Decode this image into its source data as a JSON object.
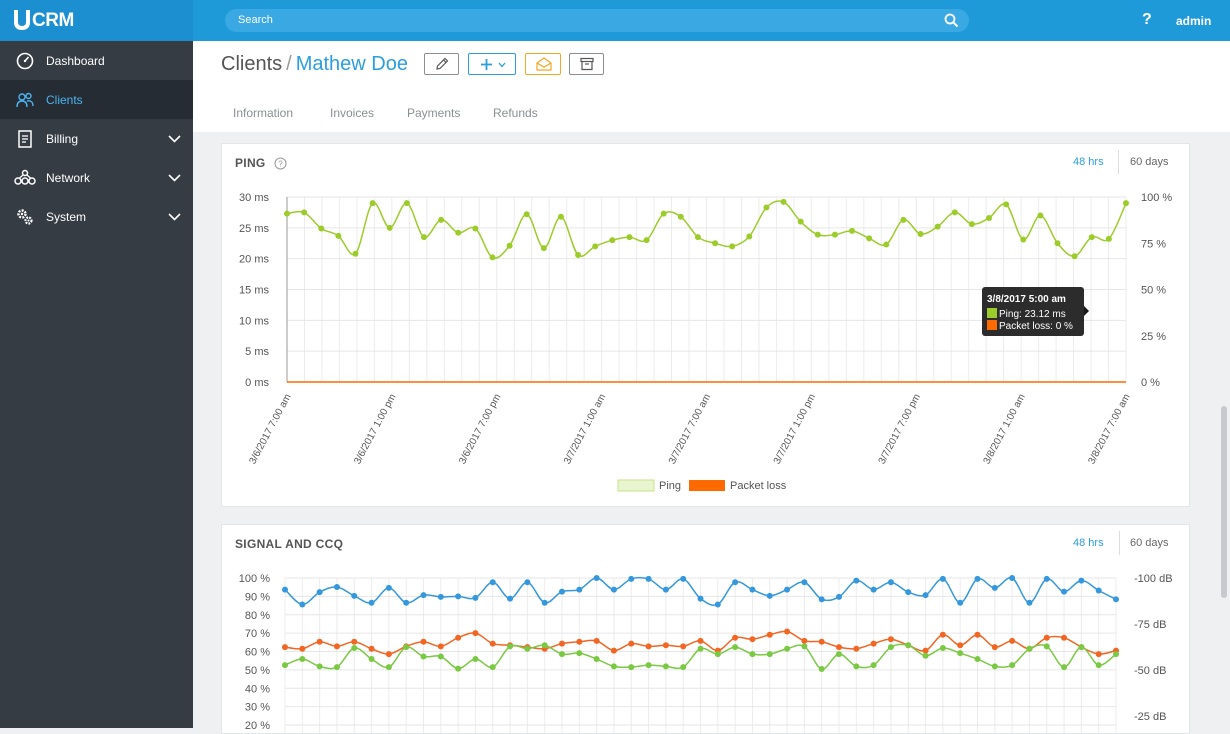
{
  "app": {
    "logo_text": "CRM",
    "search_placeholder": "Search",
    "help_label": "?",
    "user": "admin"
  },
  "sidebar": {
    "items": [
      {
        "label": "Dashboard",
        "icon": "dashboard-icon",
        "has_submenu": false,
        "active": false
      },
      {
        "label": "Clients",
        "icon": "clients-icon",
        "has_submenu": false,
        "active": true
      },
      {
        "label": "Billing",
        "icon": "billing-icon",
        "has_submenu": true,
        "active": false
      },
      {
        "label": "Network",
        "icon": "network-icon",
        "has_submenu": true,
        "active": false
      },
      {
        "label": "System",
        "icon": "system-icon",
        "has_submenu": true,
        "active": false
      }
    ]
  },
  "header": {
    "breadcrumb_root": "Clients",
    "breadcrumb_sep": "/",
    "client_name": "Mathew Doe",
    "actions": [
      "edit-icon",
      "plus-icon",
      "mail-icon",
      "archive-icon"
    ],
    "tabs": [
      "Information",
      "Invoices",
      "Payments",
      "Refunds"
    ]
  },
  "colors": {
    "accent": "#2b9fdc",
    "ping": "#9ccc2a",
    "packet_loss": "#ff6a00",
    "signal_blue": "#3598dc",
    "signal_orange": "#f26522",
    "signal_green": "#7ac943"
  },
  "ping_panel": {
    "title": "PING",
    "help_icon": "question-circle-icon",
    "range_selected": "48 hrs",
    "range_other": "60 days",
    "tooltip": {
      "title": "3/8/2017 5:00 am",
      "ping": "Ping: 23.12 ms",
      "loss": "Packet loss: 0 %"
    }
  },
  "signal_panel": {
    "title": "SIGNAL AND CCQ",
    "range_selected": "48 hrs",
    "range_other": "60 days"
  },
  "chart_data": [
    {
      "type": "line",
      "title": "PING",
      "y_left_ticks": [
        "30 ms",
        "25 ms",
        "20 ms",
        "15 ms",
        "10 ms",
        "5 ms",
        "0 ms"
      ],
      "y_right_ticks": [
        "100 %",
        "75 %",
        "50 %",
        "25 %",
        "0 %"
      ],
      "ylim": [
        0,
        30
      ],
      "y2lim": [
        0,
        100
      ],
      "x_ticks": [
        "3/6/2017 7:00 am",
        "3/6/2017 1:00 pm",
        "3/6/2017 7:00 pm",
        "3/7/2017 1:00 am",
        "3/7/2017 7:00 am",
        "3/7/2017 1:00 pm",
        "3/7/2017 7:00 pm",
        "3/8/2017 1:00 am",
        "3/8/2017 7:00 am"
      ],
      "legend": [
        "Ping",
        "Packet loss"
      ],
      "grid": true,
      "series": [
        {
          "name": "Ping",
          "axis": "left",
          "values": [
            27.3,
            27.5,
            24.9,
            23.7,
            20.8,
            29.0,
            25.0,
            29.0,
            23.5,
            26.3,
            24.2,
            24.9,
            20.2,
            22.1,
            27.2,
            21.7,
            26.8,
            20.6,
            22.0,
            23.0,
            23.5,
            23.0,
            27.3,
            26.8,
            23.5,
            22.5,
            22.0,
            23.6,
            28.3,
            29.2,
            26.0,
            23.9,
            23.9,
            24.5,
            23.3,
            22.3,
            26.3,
            24.0,
            25.2,
            27.5,
            25.6,
            26.6,
            28.8,
            23.1,
            27.0,
            22.5,
            20.4,
            23.5,
            23.2,
            29.0
          ]
        },
        {
          "name": "Packet loss",
          "axis": "right",
          "values": [
            0,
            0,
            0,
            0,
            0,
            0,
            0,
            0,
            0,
            0,
            0,
            0,
            0,
            0,
            0,
            0,
            0,
            0,
            0,
            0,
            0,
            0,
            0,
            0,
            0,
            0,
            0,
            0,
            0,
            0,
            0,
            0,
            0,
            0,
            0,
            0,
            0,
            0,
            0,
            0,
            0,
            0,
            0,
            0,
            0,
            0,
            0,
            0,
            0,
            0
          ]
        }
      ]
    },
    {
      "type": "line",
      "title": "SIGNAL AND CCQ",
      "y_left_ticks": [
        "100 %",
        "90 %",
        "80 %",
        "70 %",
        "60 %",
        "50 %",
        "40 %",
        "30 %",
        "20 %"
      ],
      "y_right_ticks": [
        "-100 dB",
        "-75 dB",
        "-50 dB",
        "-25 dB"
      ],
      "ylim": [
        20,
        100
      ],
      "grid": true,
      "series": [
        {
          "axis": "left",
          "values": [
            93.7,
            85.6,
            92.3,
            95.1,
            90.3,
            86.5,
            94.6,
            86.5,
            90.7,
            89.7,
            90.0,
            89.2,
            97.7,
            88.8,
            97.7,
            86.5,
            92.6,
            93.7,
            100.0,
            93.7,
            99.5,
            99.5,
            93.7,
            99.5,
            88.8,
            85.6,
            97.7,
            93.7,
            90.3,
            93.7,
            97.7,
            88.4,
            89.7,
            98.6,
            93.7,
            97.7,
            92.3,
            90.7,
            99.5,
            86.5,
            99.5,
            94.6,
            100.0,
            86.5,
            99.5,
            92.6,
            98.6,
            93.2,
            88.4
          ]
        },
        {
          "axis": "left",
          "values": [
            62.4,
            61.5,
            65.3,
            62.8,
            65.3,
            61.5,
            58.6,
            62.8,
            65.3,
            62.8,
            67.5,
            70.0,
            64.3,
            63.4,
            62.4,
            61.5,
            64.3,
            65.3,
            65.8,
            60.5,
            64.3,
            62.8,
            63.4,
            62.8,
            65.8,
            60.5,
            67.5,
            66.7,
            69.1,
            70.9,
            65.8,
            65.3,
            62.4,
            61.5,
            64.3,
            66.7,
            63.4,
            60.5,
            69.1,
            63.4,
            69.1,
            62.4,
            65.8,
            61.5,
            67.5,
            67.5,
            62.4,
            58.6,
            60.5
          ]
        },
        {
          "axis": "left",
          "values": [
            52.6,
            55.9,
            51.9,
            51.5,
            61.9,
            55.9,
            51.5,
            62.4,
            57.3,
            57.3,
            50.7,
            55.9,
            51.5,
            62.8,
            61.5,
            63.4,
            58.6,
            59.1,
            55.9,
            51.9,
            51.5,
            52.6,
            51.9,
            51.5,
            61.5,
            58.6,
            62.4,
            58.6,
            58.6,
            61.5,
            62.8,
            50.5,
            58.6,
            51.9,
            52.6,
            62.4,
            63.4,
            57.7,
            61.9,
            59.1,
            55.9,
            51.9,
            52.6,
            61.5,
            62.8,
            51.5,
            62.4,
            52.6,
            58.6
          ]
        }
      ]
    }
  ]
}
